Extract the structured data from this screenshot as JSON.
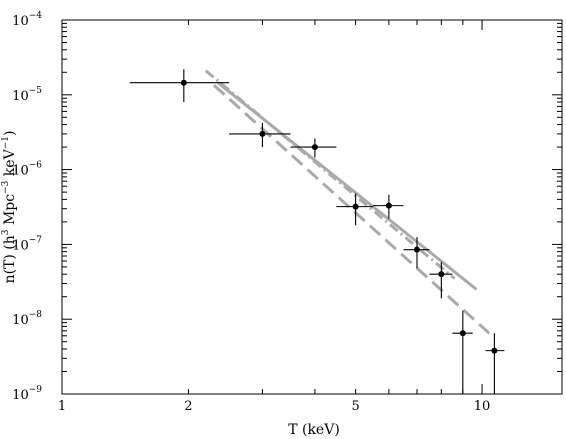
{
  "chart_data": {
    "type": "scatter",
    "xlabel": "T (keV)",
    "ylabel_parts": {
      "pre": "n(T) (h",
      "exp1": "3",
      "mid1": " Mpc",
      "exp2": "−3",
      "mid2": " keV",
      "exp3": "−1",
      "post": ")"
    },
    "xscale": "log",
    "yscale": "log",
    "xlim": [
      1,
      15.5
    ],
    "ylim": [
      1e-09,
      0.0001
    ],
    "x_ticks": [
      {
        "value": 1,
        "label": "1"
      },
      {
        "value": 2,
        "label": "2"
      },
      {
        "value": 5,
        "label": "5"
      },
      {
        "value": 10,
        "label": "10"
      }
    ],
    "y_ticks": [
      {
        "value": 1e-09,
        "base": "10",
        "exp": "−9"
      },
      {
        "value": 1e-08,
        "base": "10",
        "exp": "−8"
      },
      {
        "value": 1e-07,
        "base": "10",
        "exp": "−7"
      },
      {
        "value": 1e-06,
        "base": "10",
        "exp": "−6"
      },
      {
        "value": 1e-05,
        "base": "10",
        "exp": "−5"
      },
      {
        "value": 0.0001,
        "base": "10",
        "exp": "−4"
      }
    ],
    "points": [
      {
        "x": 1.95,
        "y": 1.45e-05,
        "xlo": 1.45,
        "xhi": 2.5,
        "ylo": 8e-06,
        "yhi": 2.2e-05
      },
      {
        "x": 3.0,
        "y": 3e-06,
        "xlo": 2.5,
        "xhi": 3.5,
        "ylo": 2e-06,
        "yhi": 4.2e-06
      },
      {
        "x": 4.0,
        "y": 2e-06,
        "xlo": 3.5,
        "xhi": 4.5,
        "ylo": 1.45e-06,
        "yhi": 2.6e-06
      },
      {
        "x": 5.0,
        "y": 3.2e-07,
        "xlo": 4.5,
        "xhi": 5.5,
        "ylo": 1.8e-07,
        "yhi": 4.8e-07
      },
      {
        "x": 6.0,
        "y": 3.3e-07,
        "xlo": 5.5,
        "xhi": 6.5,
        "ylo": 2.2e-07,
        "yhi": 4.6e-07
      },
      {
        "x": 7.0,
        "y": 8.5e-08,
        "xlo": 6.5,
        "xhi": 7.5,
        "ylo": 4.8e-08,
        "yhi": 1.25e-07
      },
      {
        "x": 8.0,
        "y": 4e-08,
        "xlo": 7.5,
        "xhi": 8.5,
        "ylo": 1.9e-08,
        "yhi": 5.8e-08
      },
      {
        "x": 9.0,
        "y": 6.5e-09,
        "xlo": 8.5,
        "xhi": 9.5,
        "ylo": 1e-09,
        "yhi": 1.3e-08
      },
      {
        "x": 10.7,
        "y": 3.8e-09,
        "xlo": 10.2,
        "xhi": 11.3,
        "ylo": 1e-09,
        "yhi": 6.5e-09
      }
    ],
    "models": [
      {
        "style": "solid",
        "color": "#aaaaaa",
        "x": [
          2.35,
          9.7
        ],
        "y": [
          1.45e-05,
          2.5e-08
        ]
      },
      {
        "style": "dashed",
        "color": "#aaaaaa",
        "x": [
          2.3,
          10.4
        ],
        "y": [
          1.35e-05,
          6.5e-09
        ]
      },
      {
        "style": "dash-dot",
        "color": "#aaaaaa",
        "x": [
          2.2,
          8.6
        ],
        "y": [
          2.1e-05,
          3.5e-08
        ]
      }
    ]
  }
}
